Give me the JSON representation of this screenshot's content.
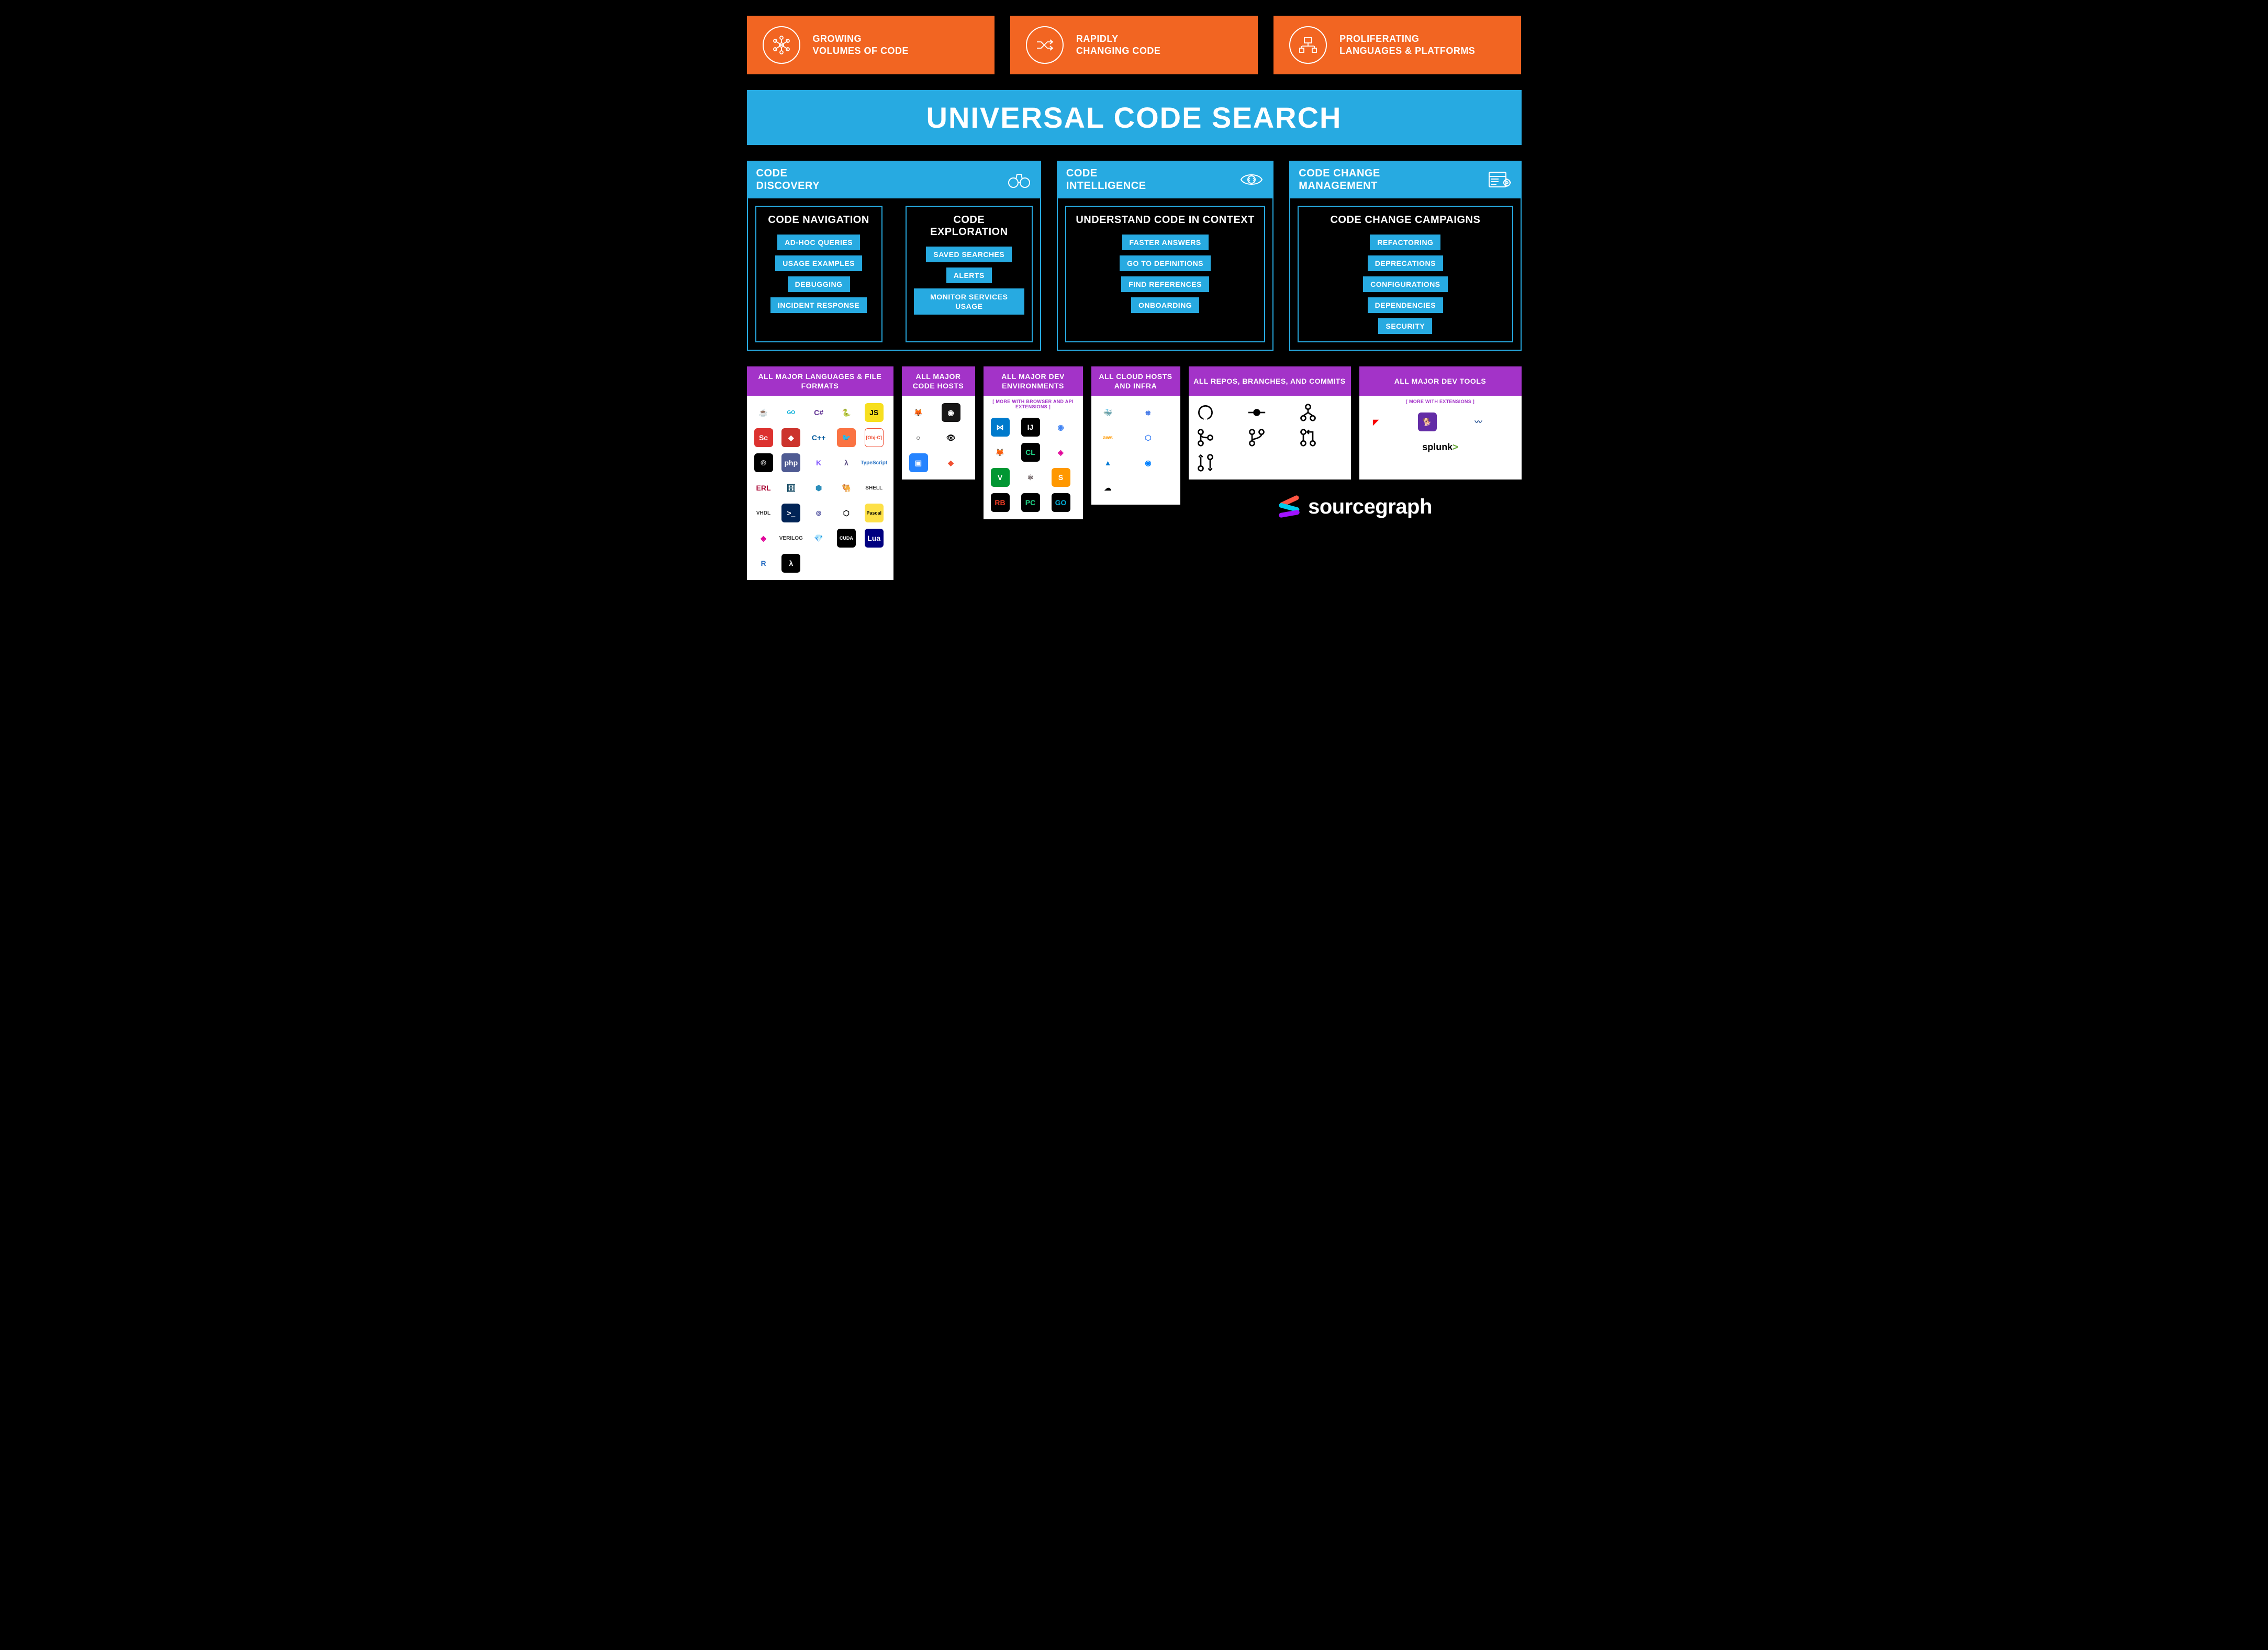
{
  "colors": {
    "background": "#000000",
    "orange": "#f26522",
    "blue": "#27aae1",
    "purple": "#a333c8",
    "white": "#ffffff"
  },
  "topCards": [
    {
      "line1": "GROWING",
      "line2": "VOLUMES OF CODE"
    },
    {
      "line1": "RAPIDLY",
      "line2": "CHANGING CODE"
    },
    {
      "line1": "PROLIFERATING",
      "line2": "LANGUAGES & PLATFORMS"
    }
  ],
  "mainBanner": "UNIVERSAL CODE SEARCH",
  "sections": {
    "discovery": {
      "title1": "CODE",
      "title2": "DISCOVERY",
      "panels": [
        {
          "title": "CODE NAVIGATION",
          "tags": [
            "AD-HOC QUERIES",
            "USAGE EXAMPLES",
            "DEBUGGING",
            "INCIDENT RESPONSE"
          ]
        },
        {
          "title": "CODE EXPLORATION",
          "tags": [
            "SAVED SEARCHES",
            "ALERTS",
            "MONITOR SERVICES USAGE"
          ]
        }
      ]
    },
    "intelligence": {
      "title1": "CODE",
      "title2": "INTELLIGENCE",
      "panel": {
        "title": "UNDERSTAND CODE IN CONTEXT",
        "tags": [
          "FASTER ANSWERS",
          "GO TO DEFINITIONS",
          "FIND REFERENCES",
          "ONBOARDING"
        ]
      }
    },
    "change": {
      "title1": "CODE CHANGE",
      "title2": "MANAGEMENT",
      "panel": {
        "title": "CODE CHANGE CAMPAIGNS",
        "tags": [
          "REFACTORING",
          "DEPRECATIONS",
          "CONFIGURATIONS",
          "DEPENDENCIES",
          "SECURITY"
        ]
      }
    }
  },
  "purpleCards": {
    "languages": {
      "title": "ALL MAJOR LANGUAGES & FILE FORMATS",
      "icons": [
        {
          "t": "box",
          "bg": "#ffffff",
          "fg": "#5382a1",
          "txt": "☕"
        },
        {
          "t": "text",
          "label": "GO",
          "color": "#00add8"
        },
        {
          "t": "box",
          "bg": "#ffffff",
          "fg": "#5c2d91",
          "txt": "C#"
        },
        {
          "t": "box",
          "bg": "#ffffff",
          "fg": "#3776ab",
          "txt": "🐍"
        },
        {
          "t": "box",
          "bg": "#f7df1e",
          "fg": "#000",
          "txt": "JS"
        },
        {
          "t": "box",
          "bg": "#dc322f",
          "fg": "#fff",
          "txt": "Sc"
        },
        {
          "t": "box",
          "bg": "#cc342d",
          "fg": "#fff",
          "txt": "◆"
        },
        {
          "t": "box",
          "bg": "#ffffff",
          "fg": "#00599c",
          "txt": "C++"
        },
        {
          "t": "box",
          "bg": "#fa7343",
          "fg": "#fff",
          "txt": "🐦"
        },
        {
          "t": "box",
          "bg": "#ffffff",
          "fg": "#f05138",
          "txt": "[Obj-C]",
          "border": "#f05138"
        },
        {
          "t": "box",
          "bg": "#000000",
          "fg": "#fff",
          "txt": "®"
        },
        {
          "t": "box",
          "bg": "#4f5b93",
          "fg": "#fff",
          "txt": "php"
        },
        {
          "t": "box",
          "bg": "#ffffff",
          "fg": "#7f52ff",
          "txt": "K"
        },
        {
          "t": "box",
          "bg": "#ffffff",
          "fg": "#5e5086",
          "txt": "λ"
        },
        {
          "t": "text",
          "label": "TypeScript",
          "color": "#3178c6"
        },
        {
          "t": "box",
          "bg": "#ffffff",
          "fg": "#a90533",
          "txt": "ERL"
        },
        {
          "t": "box",
          "bg": "#ffffff",
          "fg": "#003b57",
          "txt": "🗄"
        },
        {
          "t": "box",
          "bg": "#ffffff",
          "fg": "#2c8ebb",
          "txt": "⬢"
        },
        {
          "t": "box",
          "bg": "#ffffff",
          "fg": "#c39953",
          "txt": "🐫"
        },
        {
          "t": "text",
          "label": "SHELL",
          "color": "#333"
        },
        {
          "t": "text",
          "label": "VHDL",
          "color": "#333"
        },
        {
          "t": "box",
          "bg": "#012456",
          "fg": "#fff",
          "txt": ">_"
        },
        {
          "t": "box",
          "bg": "#ffffff",
          "fg": "#6667ab",
          "txt": "⊚"
        },
        {
          "t": "box",
          "bg": "#ffffff",
          "fg": "#000",
          "txt": "⬡"
        },
        {
          "t": "box",
          "bg": "#fde047",
          "fg": "#000",
          "txt": "Pascal"
        },
        {
          "t": "box",
          "bg": "#ffffff",
          "fg": "#e10098",
          "txt": "◈"
        },
        {
          "t": "text",
          "label": "VERILOG",
          "color": "#333"
        },
        {
          "t": "box",
          "bg": "#ffffff",
          "fg": "#4b0082",
          "txt": "💎"
        },
        {
          "t": "box",
          "bg": "#000000",
          "fg": "#fff",
          "txt": "CUDA"
        },
        {
          "t": "box",
          "bg": "#000080",
          "fg": "#fff",
          "txt": "Lua"
        },
        {
          "t": "box",
          "bg": "#ffffff",
          "fg": "#276dc3",
          "txt": "R"
        },
        {
          "t": "box",
          "bg": "#000000",
          "fg": "#fff",
          "txt": "λ"
        }
      ],
      "cols": 5
    },
    "codeHosts": {
      "title": "ALL MAJOR CODE HOSTS",
      "icons": [
        {
          "t": "box",
          "bg": "#ffffff",
          "fg": "#fc6d26",
          "txt": "🦊"
        },
        {
          "t": "box",
          "bg": "#181717",
          "fg": "#fff",
          "txt": "◉"
        },
        {
          "t": "box",
          "bg": "#ffffff",
          "fg": "#000",
          "txt": "○"
        },
        {
          "t": "box",
          "bg": "#ffffff",
          "fg": "#000",
          "txt": "👁"
        },
        {
          "t": "box",
          "bg": "#2684ff",
          "fg": "#fff",
          "txt": "▣"
        },
        {
          "t": "box",
          "bg": "#ffffff",
          "fg": "#f05032",
          "txt": "◆"
        }
      ],
      "cols": 2
    },
    "devEnv": {
      "title": "ALL MAJOR DEV ENVIRONMENTS",
      "note": "[ MORE WITH BROWSER AND API EXTENSIONS ]",
      "icons": [
        {
          "t": "box",
          "bg": "#007acc",
          "fg": "#fff",
          "txt": "⋈"
        },
        {
          "t": "box",
          "bg": "#000000",
          "fg": "#fff",
          "txt": "IJ"
        },
        {
          "t": "box",
          "bg": "#ffffff",
          "fg": "#4285f4",
          "txt": "◉"
        },
        {
          "t": "box",
          "bg": "#ffffff",
          "fg": "#ff7139",
          "txt": "🦊"
        },
        {
          "t": "box",
          "bg": "#000000",
          "fg": "#21d789",
          "txt": "CL"
        },
        {
          "t": "box",
          "bg": "#ffffff",
          "fg": "#e10098",
          "txt": "◈"
        },
        {
          "t": "box",
          "bg": "#019733",
          "fg": "#fff",
          "txt": "V"
        },
        {
          "t": "box",
          "bg": "#ffffff",
          "fg": "#66595c",
          "txt": "⚛"
        },
        {
          "t": "box",
          "bg": "#ff9800",
          "fg": "#fff",
          "txt": "S"
        },
        {
          "t": "box",
          "bg": "#000000",
          "fg": "#ef3b24",
          "txt": "RB"
        },
        {
          "t": "box",
          "bg": "#000000",
          "fg": "#21d789",
          "txt": "PC"
        },
        {
          "t": "box",
          "bg": "#000000",
          "fg": "#00add8",
          "txt": "GO"
        }
      ],
      "cols": 3
    },
    "cloudHosts": {
      "title": "ALL CLOUD HOSTS AND INFRA",
      "icons": [
        {
          "t": "box",
          "bg": "#ffffff",
          "fg": "#2496ed",
          "txt": "🐳"
        },
        {
          "t": "box",
          "bg": "#ffffff",
          "fg": "#326ce5",
          "txt": "⎈"
        },
        {
          "t": "text",
          "label": "aws",
          "color": "#ff9900"
        },
        {
          "t": "box",
          "bg": "#ffffff",
          "fg": "#4285f4",
          "txt": "⬡"
        },
        {
          "t": "box",
          "bg": "#ffffff",
          "fg": "#0078d4",
          "txt": "▲"
        },
        {
          "t": "box",
          "bg": "#ffffff",
          "fg": "#0080ff",
          "txt": "◉"
        },
        {
          "t": "box",
          "bg": "#ffffff",
          "fg": "#000",
          "txt": "☁"
        }
      ],
      "cols": 2
    },
    "repos": {
      "title": "ALL REPOS, BRANCHES, AND COMMITS",
      "icons": [
        {
          "t": "svg",
          "d": "opensource"
        },
        {
          "t": "svg",
          "d": "commit"
        },
        {
          "t": "svg",
          "d": "fork"
        },
        {
          "t": "svg",
          "d": "merge"
        },
        {
          "t": "svg",
          "d": "branch"
        },
        {
          "t": "svg",
          "d": "pr"
        },
        {
          "t": "svg",
          "d": "compare"
        }
      ],
      "cols": 3
    },
    "devTools": {
      "title": "ALL MAJOR DEV TOOLS",
      "note": "[ MORE WITH EXTENSIONS ]",
      "icons": [
        {
          "t": "box",
          "bg": "#ffffff",
          "fg": "#f80000",
          "txt": "◤"
        },
        {
          "t": "box",
          "bg": "#632ca6",
          "fg": "#fff",
          "txt": "🐕"
        },
        {
          "t": "box",
          "bg": "#ffffff",
          "fg": "#1e4b8f",
          "txt": "〰"
        }
      ],
      "splunk": "splunk",
      "cols": 3
    }
  },
  "logo": {
    "text": "sourcegraph"
  }
}
